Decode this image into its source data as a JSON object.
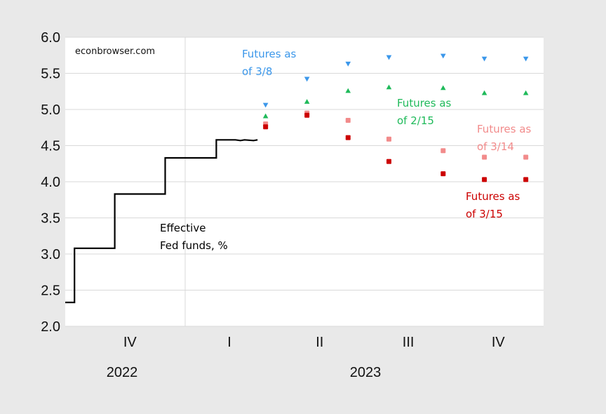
{
  "chart_data": {
    "type": "line",
    "source": "econbrowser.com",
    "ylim": [
      2.0,
      6.0
    ],
    "y_ticks": [
      "6.0",
      "5.5",
      "5.0",
      "4.5",
      "4.0",
      "3.5",
      "3.0",
      "2.5",
      "2.0"
    ],
    "x_ticks": [
      "IV",
      "I",
      "II",
      "III",
      "IV"
    ],
    "year_labels": [
      "2022",
      "2023"
    ],
    "grid": true,
    "series": [
      {
        "name": "Effective Fed funds, %",
        "label_lines": [
          "Effective",
          "Fed funds, %"
        ],
        "style": "step-line",
        "color": "#000000",
        "points": [
          [
            "2022-09-22",
            2.33
          ],
          [
            "2022-09-29",
            2.33
          ],
          [
            "2022-09-29",
            3.08
          ],
          [
            "2022-11-02",
            3.08
          ],
          [
            "2022-11-02",
            3.83
          ],
          [
            "2022-12-15",
            3.83
          ],
          [
            "2022-12-15",
            4.33
          ],
          [
            "2023-02-01",
            4.33
          ],
          [
            "2023-02-01",
            4.58
          ],
          [
            "2023-02-20",
            4.58
          ],
          [
            "2023-02-25",
            4.57
          ],
          [
            "2023-03-01",
            4.58
          ],
          [
            "2023-03-10",
            4.57
          ],
          [
            "2023-03-14",
            4.58
          ]
        ]
      },
      {
        "name": "Futures as of 3/8",
        "label_lines": [
          "Futures as",
          "of 3/8"
        ],
        "style": "markers",
        "marker": "triangle-down",
        "color": "#3b97ea",
        "points": [
          [
            "2023-03-22",
            5.06
          ],
          [
            "2023-05-03",
            5.42
          ],
          [
            "2023-06-14",
            5.63
          ],
          [
            "2023-07-26",
            5.72
          ],
          [
            "2023-09-20",
            5.74
          ],
          [
            "2023-11-01",
            5.7
          ],
          [
            "2023-12-13",
            5.7
          ]
        ]
      },
      {
        "name": "Futures as of 2/15",
        "label_lines": [
          "Futures as",
          "of 2/15"
        ],
        "style": "markers",
        "marker": "triangle-up",
        "color": "#1fba5a",
        "points": [
          [
            "2023-03-22",
            4.91
          ],
          [
            "2023-05-03",
            5.11
          ],
          [
            "2023-06-14",
            5.26
          ],
          [
            "2023-07-26",
            5.31
          ],
          [
            "2023-09-20",
            5.3
          ],
          [
            "2023-11-01",
            5.23
          ],
          [
            "2023-12-13",
            5.23
          ]
        ]
      },
      {
        "name": "Futures as of 3/14",
        "label_lines": [
          "Futures as",
          "of 3/14"
        ],
        "style": "markers",
        "marker": "square",
        "color": "#f28b8b",
        "points": [
          [
            "2023-03-22",
            4.8
          ],
          [
            "2023-05-03",
            4.95
          ],
          [
            "2023-06-14",
            4.85
          ],
          [
            "2023-07-26",
            4.59
          ],
          [
            "2023-09-20",
            4.43
          ],
          [
            "2023-11-01",
            4.34
          ],
          [
            "2023-12-13",
            4.34
          ]
        ]
      },
      {
        "name": "Futures as of 3/15",
        "label_lines": [
          "Futures as",
          "of 3/15"
        ],
        "style": "markers",
        "marker": "square",
        "color": "#cc0000",
        "points": [
          [
            "2023-03-22",
            4.76
          ],
          [
            "2023-05-03",
            4.92
          ],
          [
            "2023-06-14",
            4.61
          ],
          [
            "2023-07-26",
            4.28
          ],
          [
            "2023-09-20",
            4.11
          ],
          [
            "2023-11-01",
            4.03
          ],
          [
            "2023-12-13",
            4.03
          ]
        ]
      }
    ]
  }
}
